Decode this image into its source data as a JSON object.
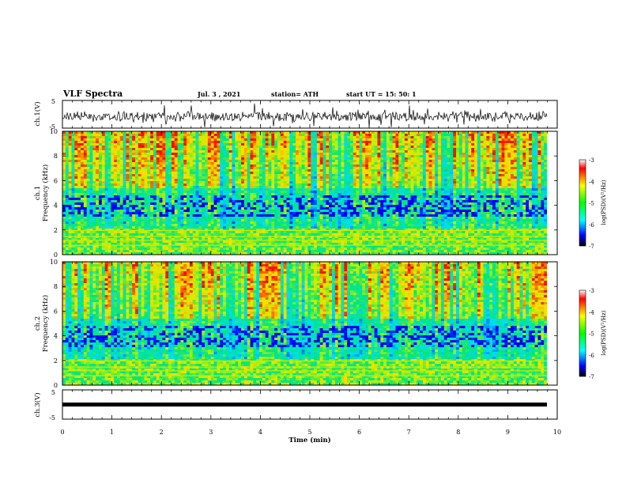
{
  "header": {
    "title": "VLF Spectra",
    "date": "Jul. 3 , 2021",
    "station": "station= ATH",
    "start": "start UT = 15: 50: 1"
  },
  "chart_data": [
    {
      "type": "line",
      "panel": "waveform-ch1",
      "ylabel": "ch.1(V)",
      "yticks": [
        "5",
        "-5"
      ],
      "ylim": [
        -5,
        5
      ],
      "xlim": [
        0,
        10
      ]
    },
    {
      "type": "heatmap",
      "panel": "spectrogram-ch1",
      "ylabel_line1": "ch.1",
      "ylabel_line2": "Frequency (kHz)",
      "yticks": [
        "0",
        "2",
        "4",
        "6",
        "8",
        "10"
      ],
      "ylim": [
        0,
        10
      ],
      "xlim": [
        0,
        10
      ],
      "colorbar": {
        "label": "log(PSD)(V²/Hz)",
        "ticks": [
          "-3",
          "-4",
          "-5",
          "-6",
          "-7"
        ],
        "range": [
          -7,
          -3
        ]
      }
    },
    {
      "type": "heatmap",
      "panel": "spectrogram-ch2",
      "ylabel_line1": "ch.2",
      "ylabel_line2": "Frequency (kHz)",
      "yticks": [
        "0",
        "2",
        "4",
        "6",
        "8",
        "10"
      ],
      "ylim": [
        0,
        10
      ],
      "xlim": [
        0,
        10
      ],
      "colorbar": {
        "label": "log(PSD)(V²/Hz)",
        "ticks": [
          "-3",
          "-4",
          "-5",
          "-6",
          "-7"
        ],
        "range": [
          -7,
          -3
        ]
      }
    },
    {
      "type": "line",
      "panel": "waveform-ch3",
      "ylabel": "ch.3(V)",
      "yticks": [
        "5",
        "-5"
      ],
      "ylim": [
        -5,
        5
      ],
      "xlim": [
        0,
        10
      ]
    }
  ],
  "xaxis": {
    "label": "Time (min)",
    "ticks": [
      "0",
      "1",
      "2",
      "3",
      "4",
      "5",
      "6",
      "7",
      "8",
      "9",
      "10"
    ]
  }
}
